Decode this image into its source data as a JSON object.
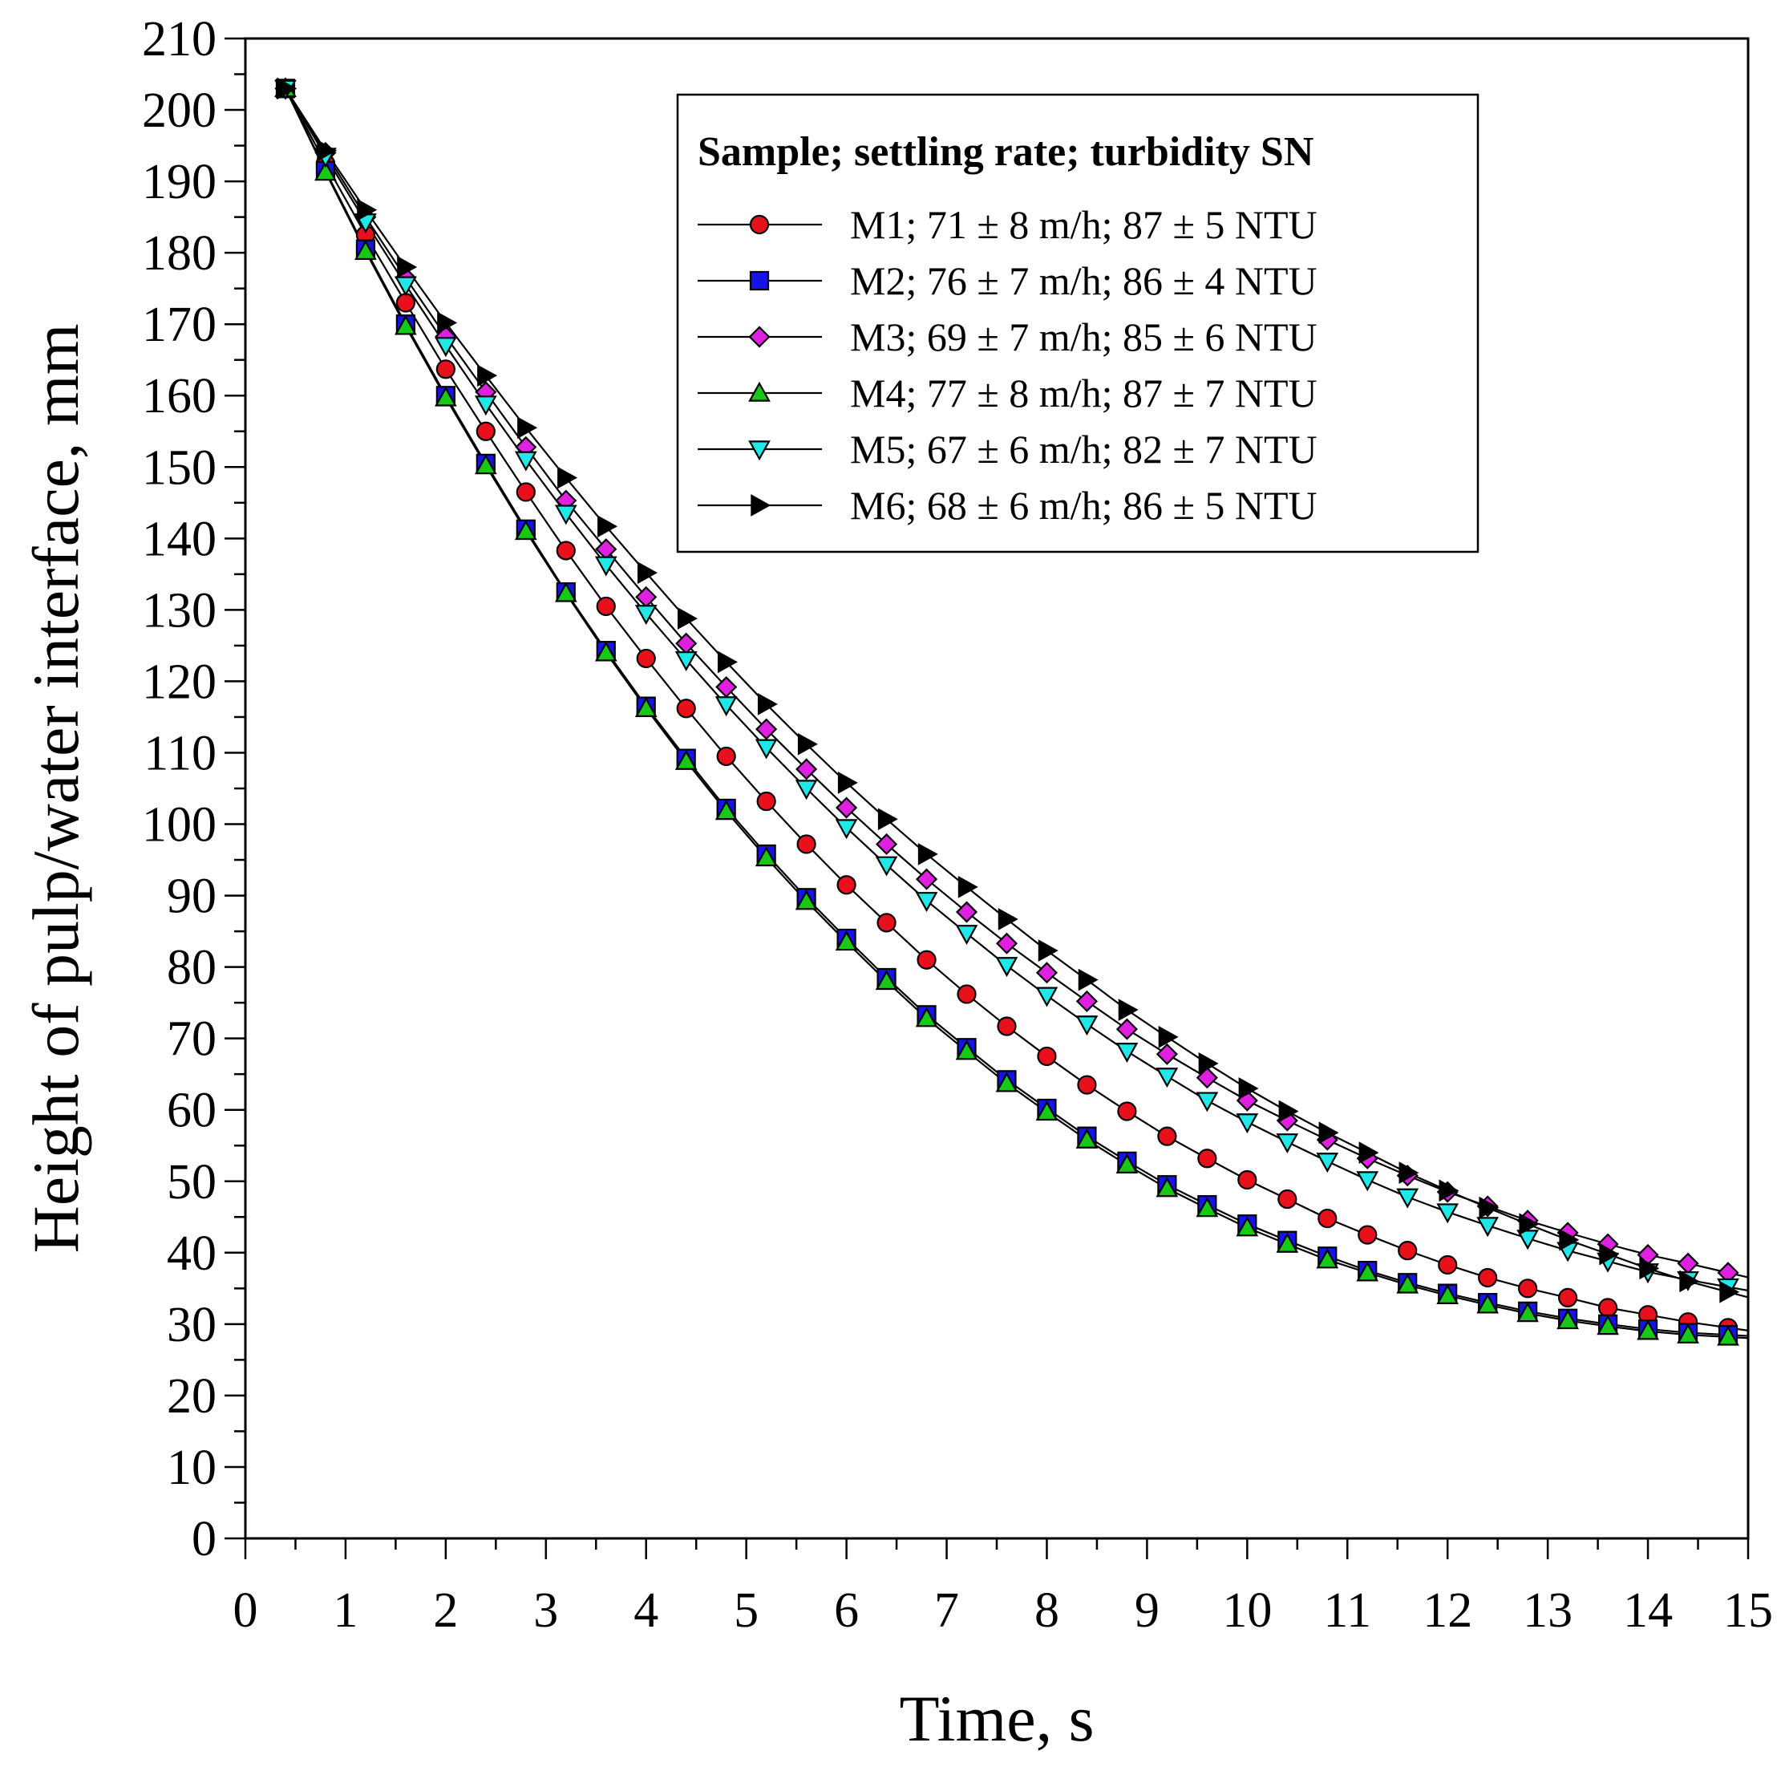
{
  "chart_data": {
    "type": "line",
    "xlabel": "Time, s",
    "ylabel": "Height of pulp/water interface, mm",
    "xlim": [
      0,
      15
    ],
    "ylim": [
      0,
      210
    ],
    "x_major_ticks": [
      0,
      1,
      2,
      3,
      4,
      5,
      6,
      7,
      8,
      9,
      10,
      11,
      12,
      13,
      14,
      15
    ],
    "x_minor_step": 0.5,
    "y_major_ticks": [
      0,
      10,
      20,
      30,
      40,
      50,
      60,
      70,
      80,
      90,
      100,
      110,
      120,
      130,
      140,
      150,
      160,
      170,
      180,
      190,
      200,
      210
    ],
    "y_minor_step": 5,
    "grid": false,
    "legend": {
      "title": "Sample; settling rate; turbidity SN",
      "placement": "top-right"
    },
    "x": [
      0.4,
      0.8,
      1.2,
      1.6,
      2.0,
      2.4,
      2.8,
      3.2,
      3.6,
      4.0,
      4.4,
      4.8,
      5.2,
      5.6,
      6.0,
      6.4,
      6.8,
      7.2,
      7.6,
      8.0,
      8.4,
      8.8,
      9.2,
      9.6,
      10.0,
      10.4,
      10.8,
      11.2,
      11.6,
      12.0,
      12.4,
      12.8,
      13.2,
      13.6,
      14.0,
      14.4,
      14.8
    ],
    "series": [
      {
        "name": "M1; 71 ± 8 m/h; 87 ± 5 NTU",
        "marker": "circle",
        "color": "#e8101a",
        "values": [
          203,
          192.5,
          182.5,
          173,
          163.7,
          155,
          146.5,
          138.3,
          130.5,
          123.2,
          116.2,
          109.5,
          103.2,
          97.2,
          91.5,
          86.2,
          81,
          76.2,
          71.7,
          67.5,
          63.5,
          59.8,
          56.3,
          53.2,
          50.2,
          47.5,
          44.8,
          42.5,
          40.3,
          38.3,
          36.5,
          35,
          33.7,
          32.3,
          31.3,
          30.3,
          29.5
        ]
      },
      {
        "name": "M2; 76 ± 7 m/h; 86 ± 4 NTU",
        "marker": "square",
        "color": "#1414e6",
        "values": [
          203,
          191.5,
          180.5,
          170,
          160,
          150.5,
          141.3,
          132.5,
          124.3,
          116.5,
          109.2,
          102.2,
          95.8,
          89.7,
          84,
          78.5,
          73.3,
          68.7,
          64.2,
          60.2,
          56.3,
          52.8,
          49.5,
          46.7,
          44,
          41.7,
          39.5,
          37.5,
          35.8,
          34.3,
          33,
          31.8,
          30.8,
          30,
          29.3,
          28.8,
          28.5
        ]
      },
      {
        "name": "M3; 69 ± 7 m/h; 85 ± 6 NTU",
        "marker": "diamond",
        "color": "#e020e0",
        "values": [
          203,
          194,
          185,
          176.5,
          168.3,
          160.5,
          152.8,
          145.3,
          138.5,
          131.8,
          125.3,
          119.2,
          113.3,
          107.7,
          102.3,
          97.2,
          92.3,
          87.7,
          83.3,
          79.2,
          75.2,
          71.3,
          67.8,
          64.5,
          61.3,
          58.5,
          55.8,
          53.2,
          50.8,
          48.5,
          46.5,
          44.5,
          42.8,
          41.2,
          39.7,
          38.5,
          37.2
        ]
      },
      {
        "name": "M4; 77 ± 8 m/h; 87 ± 7 NTU",
        "marker": "triangle-up",
        "color": "#18c818",
        "values": [
          203,
          191.3,
          180.2,
          169.7,
          159.7,
          150.2,
          141,
          132.3,
          124,
          116.2,
          108.8,
          101.8,
          95.3,
          89.2,
          83.5,
          78,
          72.8,
          68.2,
          63.7,
          59.7,
          55.8,
          52.3,
          49,
          46.2,
          43.5,
          41.2,
          39,
          37.2,
          35.5,
          34,
          32.7,
          31.5,
          30.5,
          29.7,
          29,
          28.5,
          28.2
        ]
      },
      {
        "name": "M5; 67 ± 6 m/h; 82 ± 7 NTU",
        "marker": "triangle-down",
        "color": "#20e8e8",
        "values": [
          203,
          193.5,
          184.3,
          175.5,
          167,
          158.8,
          151,
          143.5,
          136.3,
          129.5,
          123,
          116.7,
          110.7,
          105,
          99.5,
          94.3,
          89.3,
          84.7,
          80.2,
          76,
          72,
          68.2,
          64.7,
          61.3,
          58.3,
          55.5,
          52.8,
          50.2,
          47.8,
          45.7,
          43.8,
          42,
          40.3,
          38.8,
          37.3,
          36.2,
          35.2
        ]
      },
      {
        "name": "M6; 68 ± 6 m/h; 86 ± 5 NTU",
        "marker": "triangle-right",
        "color": "#000000",
        "values": [
          203,
          194.3,
          186,
          178,
          170.2,
          162.8,
          155.5,
          148.5,
          141.7,
          135.2,
          128.8,
          122.7,
          116.8,
          111.2,
          105.8,
          100.7,
          95.8,
          91.2,
          86.7,
          82.3,
          78.2,
          74,
          70.2,
          66.5,
          63,
          59.8,
          56.8,
          54,
          51.2,
          48.7,
          46.3,
          44,
          41.8,
          39.8,
          37.8,
          36,
          34.5
        ]
      }
    ]
  }
}
